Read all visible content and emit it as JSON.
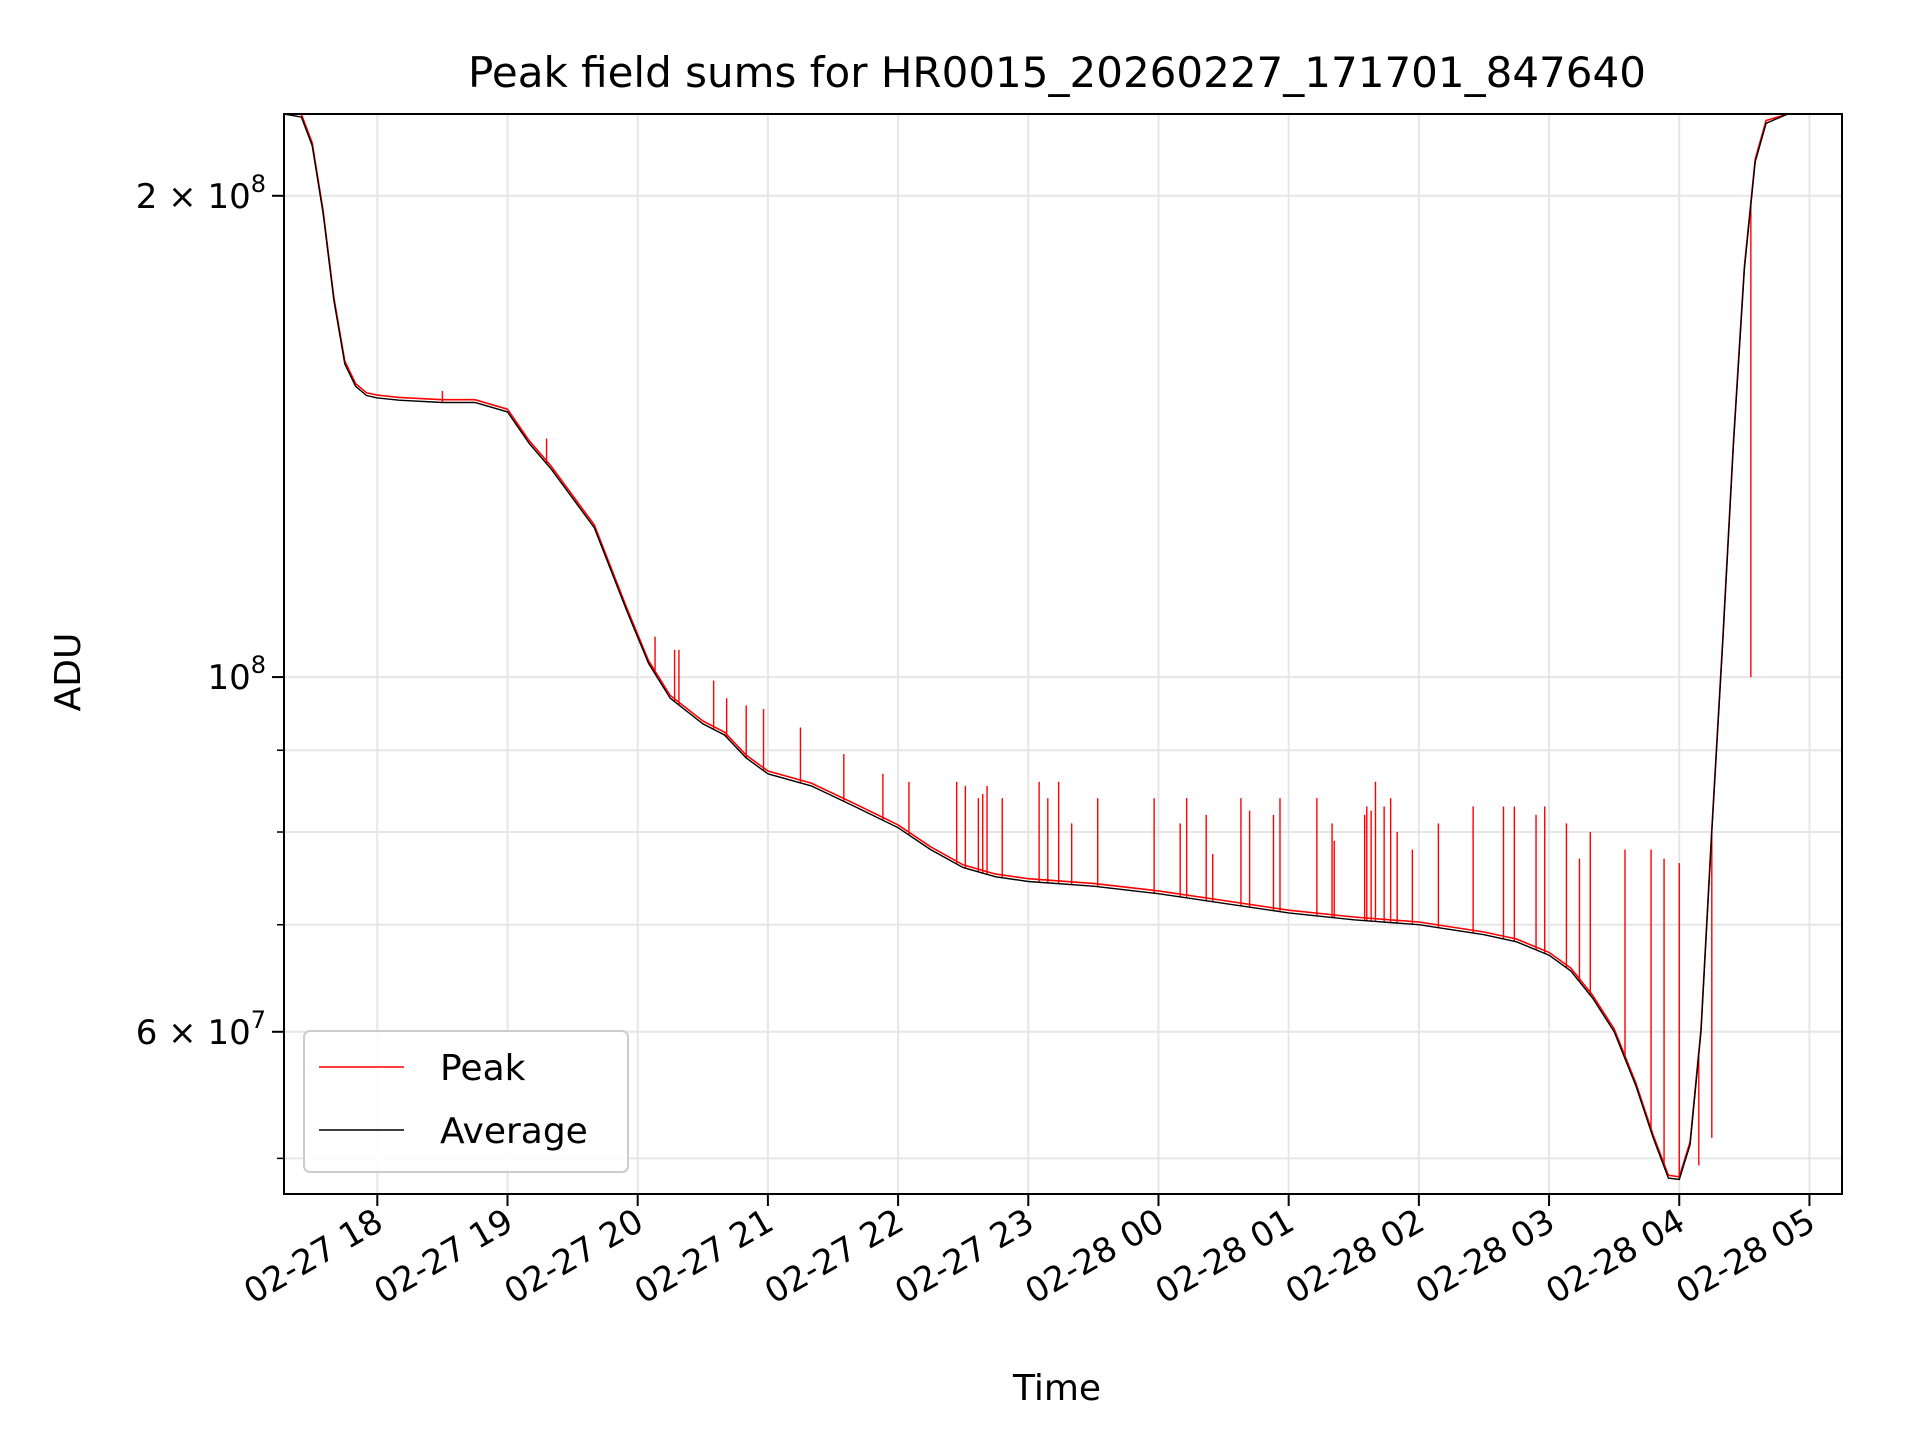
{
  "chart_data": {
    "type": "line",
    "title": "Peak field sums for HR0015_20260227_171701_847640",
    "xlabel": "Time",
    "ylabel": "ADU",
    "yscale": "log",
    "ylim": [
      47500000,
      225000000
    ],
    "xlim": [
      "2026-02-27 17:17",
      "2026-02-28 05:15"
    ],
    "grid": true,
    "legend_position": "lower-left",
    "x_tick_labels": [
      "02-27 18",
      "02-27 19",
      "02-27 20",
      "02-27 21",
      "02-27 22",
      "02-27 23",
      "02-28 00",
      "02-28 01",
      "02-28 02",
      "02-28 03",
      "02-28 04",
      "02-28 05"
    ],
    "y_tick_labels": [
      {
        "value": 200000000,
        "mantissa": "2",
        "exponent": "8"
      },
      {
        "value": 100000000,
        "mantissa": "",
        "exponent": "8"
      },
      {
        "value": 60000000,
        "mantissa": "6",
        "exponent": "7"
      }
    ],
    "baseline": {
      "x": [
        "2026-02-27 17:17",
        "2026-02-27 17:25",
        "2026-02-27 17:30",
        "2026-02-27 17:35",
        "2026-02-27 17:40",
        "2026-02-27 17:45",
        "2026-02-27 17:50",
        "2026-02-27 17:55",
        "2026-02-27 18:00",
        "2026-02-27 18:10",
        "2026-02-27 18:30",
        "2026-02-27 18:45",
        "2026-02-27 19:00",
        "2026-02-27 19:10",
        "2026-02-27 19:20",
        "2026-02-27 19:40",
        "2026-02-27 19:55",
        "2026-02-27 20:05",
        "2026-02-27 20:15",
        "2026-02-27 20:30",
        "2026-02-27 20:40",
        "2026-02-27 20:50",
        "2026-02-27 21:00",
        "2026-02-27 21:20",
        "2026-02-27 21:40",
        "2026-02-27 22:00",
        "2026-02-27 22:15",
        "2026-02-27 22:30",
        "2026-02-27 22:45",
        "2026-02-27 23:00",
        "2026-02-27 23:30",
        "2026-02-28 00:00",
        "2026-02-28 00:30",
        "2026-02-28 01:00",
        "2026-02-28 01:30",
        "2026-02-28 02:00",
        "2026-02-28 02:30",
        "2026-02-28 02:45",
        "2026-02-28 03:00",
        "2026-02-28 03:10",
        "2026-02-28 03:20",
        "2026-02-28 03:30",
        "2026-02-28 03:40",
        "2026-02-28 03:48",
        "2026-02-28 03:55",
        "2026-02-28 04:00",
        "2026-02-28 04:05",
        "2026-02-28 04:10",
        "2026-02-28 04:15",
        "2026-02-28 04:20",
        "2026-02-28 04:25",
        "2026-02-28 04:30",
        "2026-02-28 04:35",
        "2026-02-28 04:40",
        "2026-02-28 04:50",
        "2026-02-28 05:00",
        "2026-02-28 05:15"
      ],
      "y": [
        225000000,
        224000000,
        215000000,
        195000000,
        172000000,
        157000000,
        152000000,
        150000000,
        149500000,
        149000000,
        148500000,
        148500000,
        146500000,
        140000000,
        135000000,
        124000000,
        110000000,
        102000000,
        97000000,
        93500000,
        92000000,
        89000000,
        87000000,
        85500000,
        83000000,
        80500000,
        78000000,
        76000000,
        75000000,
        74500000,
        74000000,
        73200000,
        72200000,
        71200000,
        70500000,
        70000000,
        69000000,
        68300000,
        67000000,
        65500000,
        63000000,
        60000000,
        55500000,
        51500000,
        48600000,
        48500000,
        51000000,
        60000000,
        80000000,
        105000000,
        140000000,
        180000000,
        210000000,
        222000000,
        225000000,
        225000000,
        225000000
      ]
    },
    "series": [
      {
        "name": "Peak",
        "color": "#ff0000",
        "spikes": {
          "x": [
            "2026-02-27 18:30",
            "2026-02-27 19:18",
            "2026-02-27 20:08",
            "2026-02-27 20:17",
            "2026-02-27 20:19",
            "2026-02-27 20:35",
            "2026-02-27 20:41",
            "2026-02-27 20:50",
            "2026-02-27 20:58",
            "2026-02-27 21:15",
            "2026-02-27 21:35",
            "2026-02-27 21:53",
            "2026-02-27 22:05",
            "2026-02-27 22:27",
            "2026-02-27 22:31",
            "2026-02-27 22:37",
            "2026-02-27 22:39",
            "2026-02-27 22:41",
            "2026-02-27 22:48",
            "2026-02-27 23:05",
            "2026-02-27 23:09",
            "2026-02-27 23:14",
            "2026-02-27 23:20",
            "2026-02-27 23:32",
            "2026-02-27 23:58",
            "2026-02-28 00:10",
            "2026-02-28 00:13",
            "2026-02-28 00:22",
            "2026-02-28 00:25",
            "2026-02-28 00:38",
            "2026-02-28 00:42",
            "2026-02-28 00:53",
            "2026-02-28 00:56",
            "2026-02-28 01:13",
            "2026-02-28 01:20",
            "2026-02-28 01:21",
            "2026-02-28 01:35",
            "2026-02-28 01:36",
            "2026-02-28 01:38",
            "2026-02-28 01:40",
            "2026-02-28 01:44",
            "2026-02-28 01:47",
            "2026-02-28 01:50",
            "2026-02-28 01:57",
            "2026-02-28 02:09",
            "2026-02-28 02:25",
            "2026-02-28 02:39",
            "2026-02-28 02:44",
            "2026-02-28 02:54",
            "2026-02-28 02:58",
            "2026-02-28 03:08",
            "2026-02-28 03:14",
            "2026-02-28 03:19",
            "2026-02-28 03:35",
            "2026-02-28 03:47",
            "2026-02-28 03:53",
            "2026-02-28 04:00",
            "2026-02-28 04:09",
            "2026-02-28 04:15",
            "2026-02-28 04:33"
          ],
          "y": [
            151000000,
            141000000,
            106000000,
            104000000,
            104000000,
            99500000,
            97000000,
            96000000,
            95500000,
            93000000,
            89500000,
            87000000,
            86000000,
            86000000,
            85500000,
            84000000,
            84500000,
            85500000,
            84000000,
            86000000,
            84000000,
            86000000,
            81000000,
            84000000,
            84000000,
            81000000,
            84000000,
            82000000,
            77500000,
            84000000,
            82500000,
            82000000,
            84000000,
            84000000,
            81000000,
            79000000,
            82000000,
            83000000,
            82500000,
            86000000,
            83000000,
            84000000,
            80000000,
            78000000,
            81000000,
            83000000,
            83000000,
            83000000,
            82000000,
            83000000,
            81000000,
            77000000,
            80000000,
            78000000,
            78000000,
            77000000,
            76500000,
            49500000,
            51500000,
            100000000
          ]
        }
      },
      {
        "name": "Average",
        "color": "#000000"
      }
    ]
  }
}
